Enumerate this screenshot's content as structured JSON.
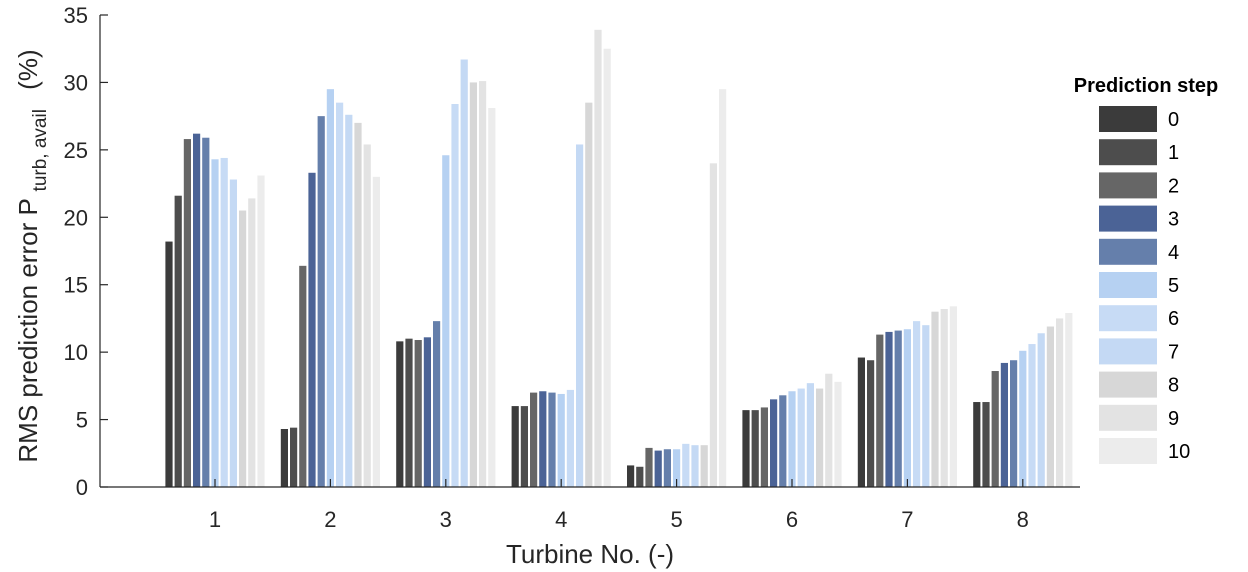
{
  "chart_data": {
    "type": "bar",
    "categories": [
      "1",
      "2",
      "3",
      "4",
      "5",
      "6",
      "7",
      "8"
    ],
    "xlabel": "Turbine No. (-)",
    "ylabel": {
      "main": "RMS prediction error P",
      "subscript": "turb, avail",
      "unit": "(%)"
    },
    "ylim": [
      0,
      35
    ],
    "yticks": [
      0,
      5,
      10,
      15,
      20,
      25,
      30,
      35
    ],
    "grid": false,
    "legend": {
      "title": "Prediction step",
      "placement": "right"
    },
    "series": [
      {
        "name": "0",
        "color": "#3b3b3b",
        "values": [
          18.2,
          4.3,
          10.8,
          6.0,
          1.6,
          5.7,
          9.6,
          6.3
        ]
      },
      {
        "name": "1",
        "color": "#4d4d4d",
        "values": [
          21.6,
          4.4,
          11.0,
          6.0,
          1.5,
          5.7,
          9.4,
          6.3
        ]
      },
      {
        "name": "2",
        "color": "#666666",
        "values": [
          25.8,
          16.4,
          10.9,
          7.0,
          2.9,
          5.9,
          11.3,
          8.6
        ]
      },
      {
        "name": "3",
        "color": "#4b6396",
        "values": [
          26.2,
          23.3,
          11.1,
          7.1,
          2.7,
          6.5,
          11.5,
          9.2
        ]
      },
      {
        "name": "4",
        "color": "#657fab",
        "values": [
          25.9,
          27.5,
          12.3,
          7.0,
          2.8,
          6.8,
          11.6,
          9.4
        ]
      },
      {
        "name": "5",
        "color": "#b6d1f2",
        "values": [
          24.3,
          29.5,
          24.6,
          6.9,
          2.8,
          7.1,
          11.7,
          10.1
        ]
      },
      {
        "name": "6",
        "color": "#c7dbf5",
        "values": [
          24.4,
          28.5,
          28.4,
          7.2,
          3.2,
          7.3,
          12.3,
          10.6
        ]
      },
      {
        "name": "7",
        "color": "#c4d9f4",
        "values": [
          22.8,
          27.6,
          31.7,
          25.4,
          3.1,
          7.7,
          12.0,
          11.4
        ]
      },
      {
        "name": "8",
        "color": "#d7d7d7",
        "values": [
          20.5,
          27.0,
          30.0,
          28.5,
          3.1,
          7.3,
          13.0,
          11.9
        ]
      },
      {
        "name": "9",
        "color": "#e3e3e3",
        "values": [
          21.4,
          25.4,
          30.1,
          33.9,
          24.0,
          8.4,
          13.2,
          12.5
        ]
      },
      {
        "name": "10",
        "color": "#ececec",
        "values": [
          23.1,
          23.0,
          28.1,
          32.5,
          29.5,
          7.8,
          13.4,
          12.9
        ]
      }
    ]
  }
}
